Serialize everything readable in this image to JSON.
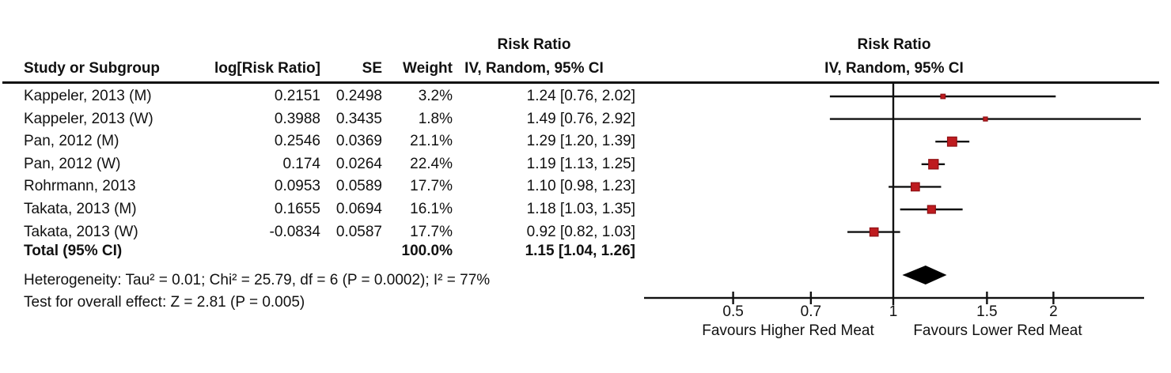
{
  "header": {
    "col_study": "Study or Subgroup",
    "col_log_rr": "log[Risk Ratio]",
    "col_se": "SE",
    "col_weight": "Weight",
    "stat_title": "Risk Ratio",
    "stat_subtitle": "IV, Random, 95% CI",
    "plot_title": "Risk Ratio",
    "plot_subtitle": "IV, Random, 95% CI"
  },
  "chart_data": {
    "type": "forest",
    "x_scale": "log",
    "x_ticks": [
      "0.5",
      "0.7",
      "1",
      "1.5",
      "2"
    ],
    "x_tick_values": [
      0.5,
      0.7,
      1,
      1.5,
      2
    ],
    "x_range": [
      0.34,
      2.96
    ],
    "null_line": 1,
    "xlabel_left": "Favours Higher Red Meat",
    "xlabel_right": "Favours Lower Red Meat",
    "marker_color": "#BE1B1F",
    "marker_edge_color": "#8E1014",
    "diamond_color": "#000000",
    "studies": [
      {
        "name": "Kappeler, 2013 (M)",
        "log_rr": "0.2151",
        "se": "0.2498",
        "weight": "3.2%",
        "weight_pct": 3.2,
        "rr": 1.24,
        "ci_low": 0.76,
        "ci_high": 2.02,
        "rr_text": "1.24 [0.76, 2.02]"
      },
      {
        "name": "Kappeler, 2013 (W)",
        "log_rr": "0.3988",
        "se": "0.3435",
        "weight": "1.8%",
        "weight_pct": 1.8,
        "rr": 1.49,
        "ci_low": 0.76,
        "ci_high": 2.92,
        "rr_text": "1.49 [0.76, 2.92]"
      },
      {
        "name": "Pan, 2012 (M)",
        "log_rr": "0.2546",
        "se": "0.0369",
        "weight": "21.1%",
        "weight_pct": 21.1,
        "rr": 1.29,
        "ci_low": 1.2,
        "ci_high": 1.39,
        "rr_text": "1.29 [1.20, 1.39]"
      },
      {
        "name": "Pan, 2012 (W)",
        "log_rr": "0.174",
        "se": "0.0264",
        "weight": "22.4%",
        "weight_pct": 22.4,
        "rr": 1.19,
        "ci_low": 1.13,
        "ci_high": 1.25,
        "rr_text": "1.19 [1.13, 1.25]"
      },
      {
        "name": "Rohrmann, 2013",
        "log_rr": "0.0953",
        "se": "0.0589",
        "weight": "17.7%",
        "weight_pct": 17.7,
        "rr": 1.1,
        "ci_low": 0.98,
        "ci_high": 1.23,
        "rr_text": "1.10 [0.98, 1.23]"
      },
      {
        "name": "Takata, 2013 (M)",
        "log_rr": "0.1655",
        "se": "0.0694",
        "weight": "16.1%",
        "weight_pct": 16.1,
        "rr": 1.18,
        "ci_low": 1.03,
        "ci_high": 1.35,
        "rr_text": "1.18 [1.03, 1.35]"
      },
      {
        "name": "Takata, 2013 (W)",
        "log_rr": "-0.0834",
        "se": "0.0587",
        "weight": "17.7%",
        "weight_pct": 17.7,
        "rr": 0.92,
        "ci_low": 0.82,
        "ci_high": 1.03,
        "rr_text": "0.92 [0.82, 1.03]"
      }
    ],
    "total": {
      "label": "Total (95% CI)",
      "weight": "100.0%",
      "weight_pct": 100.0,
      "rr": 1.15,
      "ci_low": 1.04,
      "ci_high": 1.26,
      "rr_text": "1.15 [1.04, 1.26]"
    }
  },
  "footer": {
    "heterogeneity": "Heterogeneity: Tau² = 0.01; Chi² = 25.79, df = 6 (P = 0.0002); I² = 77%",
    "overall_effect": "Test for overall effect: Z = 2.81 (P = 0.005)"
  }
}
